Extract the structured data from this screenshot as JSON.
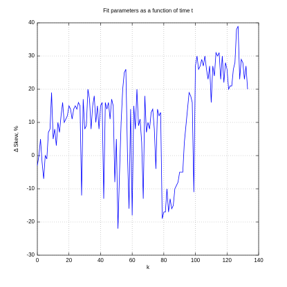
{
  "chart_data": {
    "type": "line",
    "title": "Fit parameters as a function of time t",
    "xlabel": "k",
    "ylabel": "Δ Skew, %",
    "x": [
      0,
      1,
      2,
      3,
      4,
      5,
      6,
      7,
      8,
      9,
      10,
      11,
      12,
      13,
      14,
      15,
      16,
      17,
      18,
      19,
      20,
      21,
      22,
      23,
      24,
      25,
      26,
      27,
      28,
      29,
      30,
      31,
      32,
      33,
      34,
      35,
      36,
      37,
      38,
      39,
      40,
      41,
      42,
      43,
      44,
      45,
      46,
      47,
      48,
      49,
      50,
      51,
      52,
      53,
      54,
      55,
      56,
      57,
      58,
      59,
      60,
      61,
      62,
      63,
      64,
      65,
      66,
      67,
      68,
      69,
      70,
      71,
      72,
      73,
      74,
      75,
      76,
      77,
      78,
      79,
      80,
      81,
      82,
      83,
      84,
      85,
      86,
      87,
      88,
      89,
      90,
      91,
      92,
      93,
      94,
      95,
      96,
      97,
      98,
      99,
      100,
      101,
      102,
      103,
      104,
      105,
      106,
      107,
      108,
      109,
      110,
      111,
      112,
      113,
      114,
      115,
      116,
      117,
      118,
      119,
      120,
      121,
      122,
      123,
      124,
      125,
      126,
      127,
      128,
      129,
      130,
      131,
      132,
      133
    ],
    "series": [
      {
        "color": "#0000ff",
        "values": [
          -3,
          0,
          5,
          -2,
          -7,
          0,
          -1,
          7,
          8,
          19,
          5,
          8,
          3,
          10,
          7,
          12,
          16,
          10,
          11,
          12,
          15,
          14,
          11,
          14,
          15,
          14,
          16,
          15,
          -12,
          17,
          8,
          9,
          20,
          17,
          8,
          15,
          18,
          10,
          15,
          8,
          15,
          16,
          -13,
          16,
          14,
          16,
          11,
          17,
          15,
          -8,
          5,
          -22,
          -5,
          10,
          20,
          25,
          26,
          1,
          -16,
          14,
          -18,
          15,
          8,
          20,
          9,
          11,
          4,
          -13,
          18,
          7,
          10,
          8,
          13,
          14,
          8,
          -4,
          14,
          12,
          13,
          -19,
          -17,
          -17,
          -10,
          -17,
          -13,
          -16,
          -15,
          -10,
          -9,
          -8,
          -5,
          -5,
          -5,
          4,
          9,
          14,
          19,
          18,
          16,
          -11,
          27,
          30,
          26,
          27,
          29,
          27,
          30,
          26,
          23,
          27,
          16,
          27,
          24,
          31,
          30,
          31,
          23,
          30,
          22,
          28,
          26,
          20,
          21,
          21,
          26,
          28,
          38,
          39,
          23,
          29,
          28,
          23,
          27,
          20
        ]
      }
    ],
    "xlim": [
      0,
      140
    ],
    "xticks": [
      0,
      20,
      40,
      60,
      80,
      100,
      120,
      140
    ],
    "ylim": [
      -30,
      40
    ],
    "yticks": [
      -30,
      -20,
      -10,
      0,
      10,
      20,
      30,
      40
    ],
    "grid": true
  }
}
